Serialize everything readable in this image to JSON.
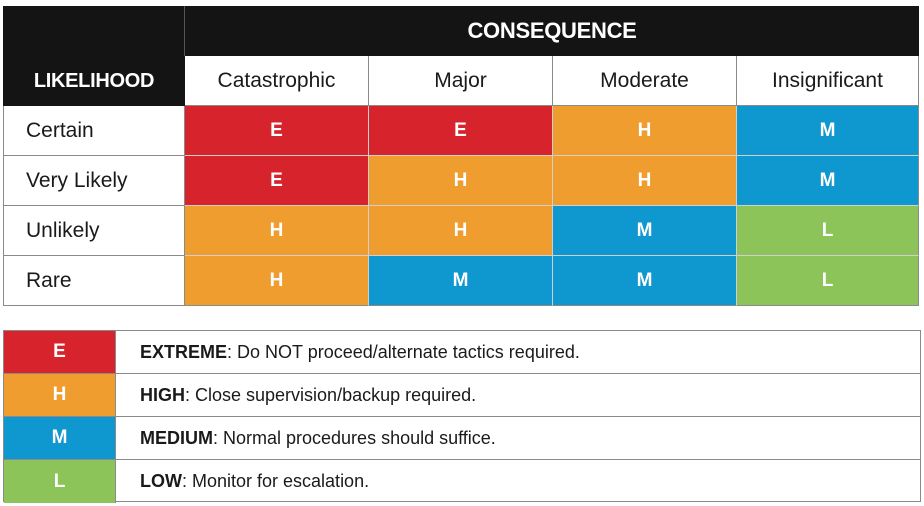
{
  "matrix": {
    "consequence_header": "CONSEQUENCE",
    "likelihood_header": "LIKELIHOOD",
    "columns": [
      "Catastrophic",
      "Major",
      "Moderate",
      "Insignificant"
    ],
    "rows": [
      {
        "label": "Certain",
        "cells": [
          "E",
          "E",
          "H",
          "M"
        ]
      },
      {
        "label": "Very Likely",
        "cells": [
          "E",
          "H",
          "H",
          "M"
        ]
      },
      {
        "label": "Unlikely",
        "cells": [
          "H",
          "H",
          "M",
          "L"
        ]
      },
      {
        "label": "Rare",
        "cells": [
          "H",
          "M",
          "M",
          "L"
        ]
      }
    ]
  },
  "legend": [
    {
      "code": "E",
      "level": "EXTREME",
      "text": ": Do NOT proceed/alternate tactics required."
    },
    {
      "code": "H",
      "level": "HIGH",
      "text": ": Close supervision/backup required."
    },
    {
      "code": "M",
      "level": "MEDIUM",
      "text": ": Normal procedures should suffice."
    },
    {
      "code": "L",
      "level": "LOW",
      "text": ": Monitor for escalation."
    }
  ],
  "colors": {
    "E": "#d7242c",
    "H": "#ee9d2e",
    "M": "#0f97d0",
    "L": "#8dc45a",
    "header": "#141414"
  }
}
